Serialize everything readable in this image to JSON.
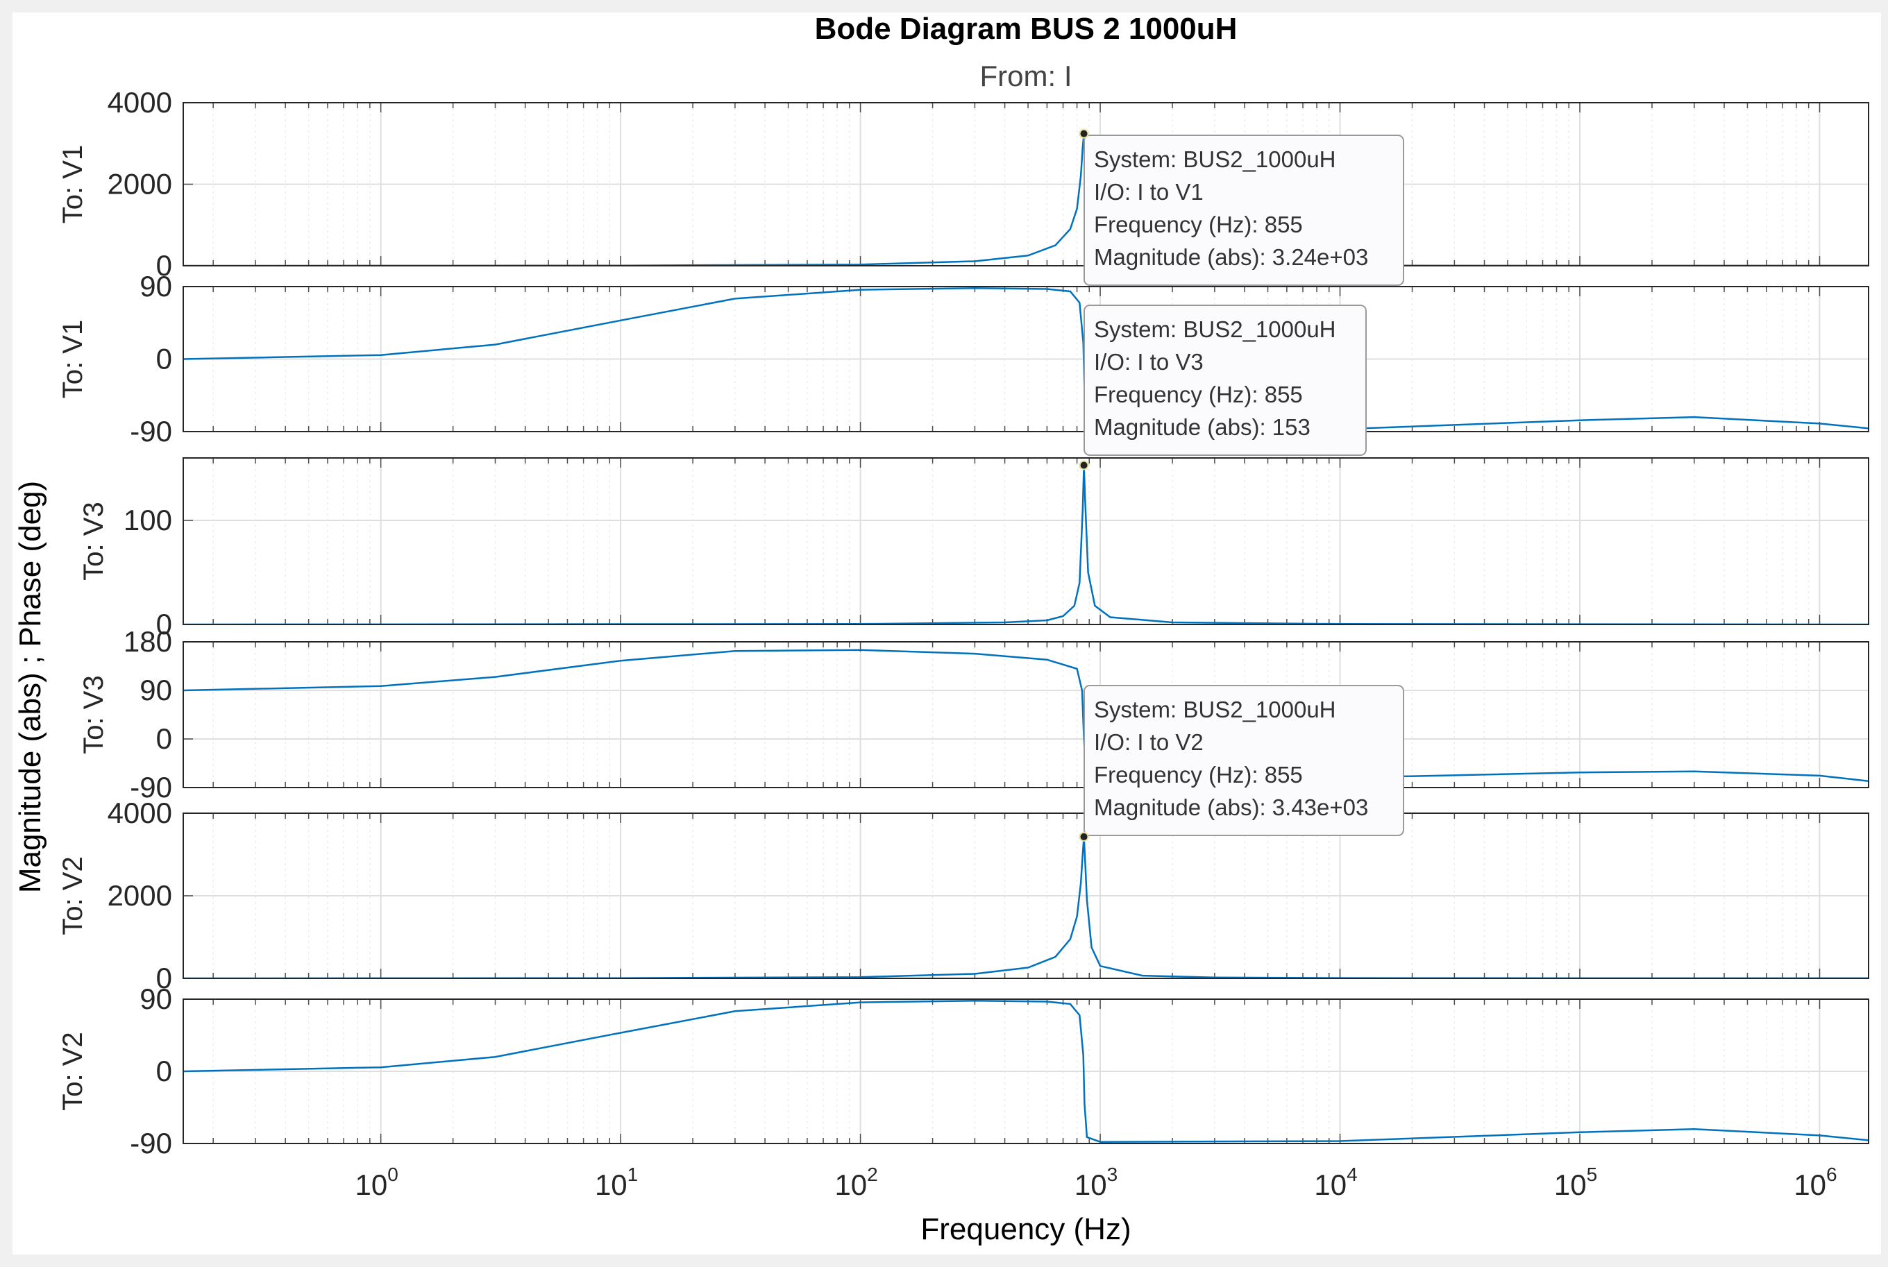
{
  "chart_data": {
    "type": "line",
    "title": "Bode Diagram BUS 2 1000uH",
    "subtitle": "From: I",
    "xlabel": "Frequency  (Hz)",
    "ylabel": "Magnitude (abs) ; Phase (deg)",
    "x_scale": "log",
    "xlim": [
      0.15,
      1600000
    ],
    "x_ticks": [
      {
        "value": 1,
        "base": "10",
        "exp": "0"
      },
      {
        "value": 10,
        "base": "10",
        "exp": "1"
      },
      {
        "value": 100,
        "base": "10",
        "exp": "2"
      },
      {
        "value": 1000,
        "base": "10",
        "exp": "3"
      },
      {
        "value": 10000,
        "base": "10",
        "exp": "4"
      },
      {
        "value": 100000,
        "base": "10",
        "exp": "5"
      },
      {
        "value": 1000000,
        "base": "10",
        "exp": "6"
      }
    ],
    "grid": true,
    "line_color": "#0072BD",
    "panels": [
      {
        "label": "To: V1",
        "kind": "magnitude",
        "ylim": [
          0,
          4000
        ],
        "yticks": [
          "0",
          "2000",
          "4000"
        ],
        "x": [
          0.15,
          1,
          10,
          100,
          300,
          500,
          650,
          750,
          800,
          830,
          845,
          855,
          865,
          880,
          920,
          1000,
          1500,
          3000,
          10000,
          100000,
          1600000
        ],
        "y": [
          0,
          1,
          5,
          30,
          110,
          250,
          500,
          900,
          1400,
          2200,
          2900,
          3240,
          2700,
          1800,
          700,
          280,
          60,
          18,
          5,
          2,
          1
        ]
      },
      {
        "label": "To: V1",
        "kind": "phase",
        "ylim": [
          -90,
          90
        ],
        "yticks": [
          "-90",
          "0",
          "90"
        ],
        "x": [
          0.15,
          1,
          3,
          10,
          30,
          100,
          300,
          600,
          750,
          820,
          850,
          860,
          880,
          1000,
          10000,
          100000,
          300000,
          1000000,
          1600000
        ],
        "y": [
          0,
          5,
          18,
          48,
          75,
          86,
          88,
          87,
          84,
          70,
          20,
          -40,
          -82,
          -88,
          -87,
          -76,
          -72,
          -80,
          -86
        ]
      },
      {
        "label": "To: V3",
        "kind": "magnitude",
        "ylim": [
          0,
          160
        ],
        "yticks": [
          "0",
          "100"
        ],
        "x": [
          0.15,
          100,
          400,
          600,
          700,
          780,
          820,
          845,
          855,
          865,
          890,
          950,
          1100,
          2000,
          10000,
          1600000
        ],
        "y": [
          0,
          0.5,
          2,
          4,
          8,
          18,
          40,
          110,
          153,
          120,
          50,
          18,
          7,
          2,
          0.5,
          0
        ]
      },
      {
        "label": "To: V3",
        "kind": "phase",
        "ylim": [
          -90,
          180
        ],
        "yticks": [
          "-90",
          "0",
          "90",
          "180"
        ],
        "x": [
          0.15,
          1,
          3,
          10,
          30,
          100,
          300,
          600,
          800,
          840,
          855,
          870,
          900,
          1000,
          10000,
          100000,
          300000,
          1000000,
          1600000
        ],
        "y": [
          90,
          98,
          115,
          145,
          163,
          165,
          158,
          147,
          130,
          90,
          0,
          -60,
          -78,
          -78,
          -72,
          -62,
          -60,
          -68,
          -78
        ]
      },
      {
        "label": "To: V2",
        "kind": "magnitude",
        "ylim": [
          0,
          4000
        ],
        "yticks": [
          "0",
          "2000",
          "4000"
        ],
        "x": [
          0.15,
          1,
          10,
          100,
          300,
          500,
          650,
          750,
          800,
          830,
          845,
          855,
          865,
          880,
          920,
          1000,
          1500,
          3000,
          10000,
          100000,
          1600000
        ],
        "y": [
          0,
          1,
          5,
          30,
          110,
          260,
          520,
          950,
          1500,
          2300,
          3000,
          3430,
          2850,
          1900,
          750,
          300,
          65,
          20,
          6,
          2,
          1
        ]
      },
      {
        "label": "To: V2",
        "kind": "phase",
        "ylim": [
          -90,
          90
        ],
        "yticks": [
          "-90",
          "0",
          "90"
        ],
        "x": [
          0.15,
          1,
          3,
          10,
          30,
          100,
          300,
          600,
          750,
          820,
          850,
          860,
          880,
          1000,
          10000,
          100000,
          300000,
          1000000,
          1600000
        ],
        "y": [
          0,
          5,
          18,
          48,
          75,
          86,
          88,
          87,
          84,
          70,
          20,
          -40,
          -82,
          -88,
          -87,
          -76,
          -72,
          -80,
          -86
        ]
      }
    ],
    "datatips": [
      {
        "panel": 0,
        "x": 855,
        "y": 3240,
        "lines": [
          "System: BUS2_1000uH",
          "I/O: I to V1",
          "Frequency (Hz): 855",
          "Magnitude (abs): 3.24e+03"
        ]
      },
      {
        "panel": 2,
        "x": 855,
        "y": 153,
        "lines": [
          "System: BUS2_1000uH",
          "I/O: I to V3",
          "Frequency (Hz): 855",
          "Magnitude (abs): 153"
        ]
      },
      {
        "panel": 4,
        "x": 855,
        "y": 3430,
        "lines": [
          "System: BUS2_1000uH",
          "I/O: I to V2",
          "Frequency (Hz): 855",
          "Magnitude (abs): 3.43e+03"
        ]
      }
    ]
  }
}
